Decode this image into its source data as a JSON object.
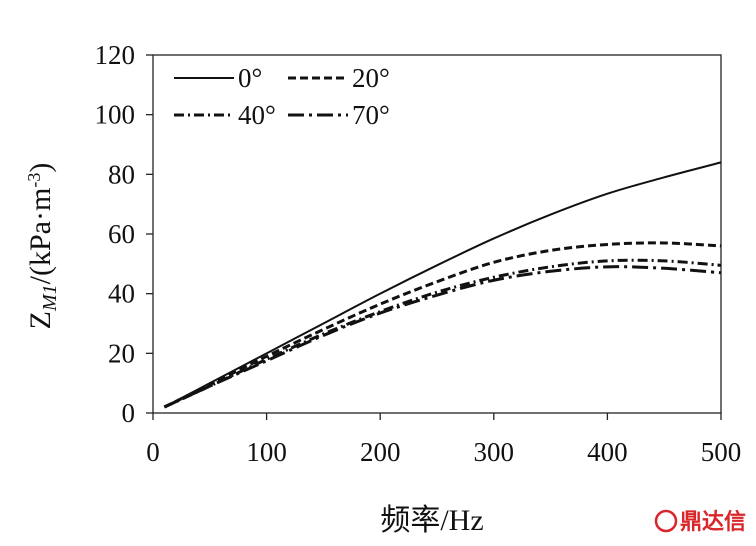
{
  "chart_data": {
    "type": "line",
    "xlabel": "频率/Hz",
    "ylabel": "Z",
    "ylabel_sub": "M1",
    "ylabel_unit": "/(kPa·m",
    "ylabel_sup": "-3",
    "ylabel_close": ")",
    "xlim": [
      0,
      500
    ],
    "ylim": [
      0,
      120
    ],
    "xticks": [
      0,
      100,
      200,
      300,
      400,
      500
    ],
    "yticks": [
      0,
      20,
      40,
      60,
      80,
      100,
      120
    ],
    "grid": false,
    "legend_position": "top-left",
    "series": [
      {
        "name": "0°",
        "dash": "solid",
        "x": [
          10,
          50,
          100,
          150,
          200,
          250,
          300,
          350,
          400,
          450,
          500
        ],
        "y": [
          2,
          10,
          20,
          30,
          40,
          49.5,
          58.5,
          66.5,
          73.5,
          79,
          84
        ]
      },
      {
        "name": "20°",
        "dash": "dash",
        "x": [
          10,
          50,
          100,
          150,
          200,
          250,
          300,
          350,
          400,
          450,
          500
        ],
        "y": [
          2,
          9.5,
          19,
          28,
          36.5,
          44,
          50.5,
          54.5,
          56.5,
          57,
          56
        ]
      },
      {
        "name": "40°",
        "dash": "dashdot",
        "x": [
          10,
          50,
          100,
          150,
          200,
          250,
          300,
          350,
          400,
          450,
          500
        ],
        "y": [
          2,
          9,
          18,
          26.5,
          34,
          40.5,
          45.5,
          49,
          51,
          51,
          49.5
        ]
      },
      {
        "name": "70°",
        "dash": "longdashdot",
        "x": [
          10,
          50,
          100,
          150,
          200,
          250,
          300,
          350,
          400,
          450,
          500
        ],
        "y": [
          2,
          9,
          17.5,
          26,
          33.5,
          39.5,
          44.5,
          47.5,
          49,
          48.5,
          47
        ]
      }
    ]
  },
  "watermark": {
    "text": "鼎达信",
    "color": "#d8262b"
  }
}
